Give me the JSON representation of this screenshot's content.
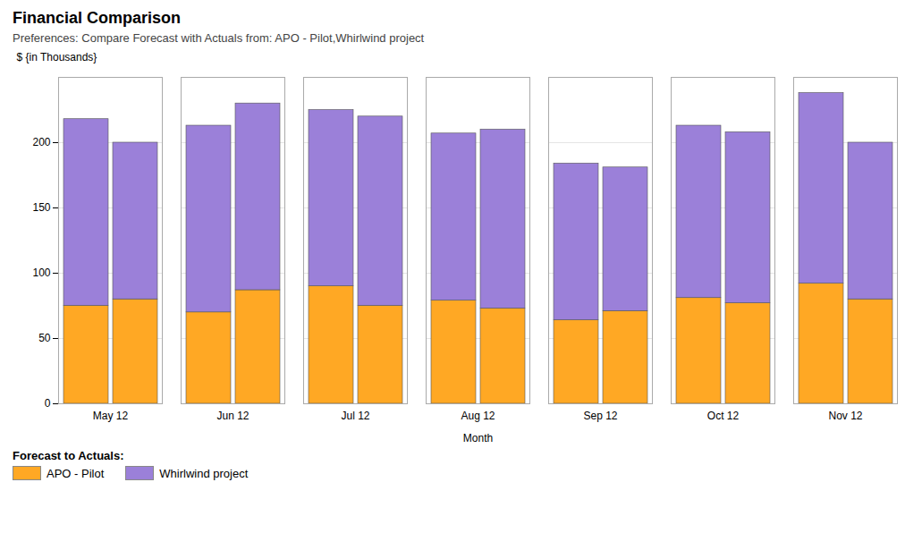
{
  "chart_data": {
    "type": "bar",
    "stacked": true,
    "title": "Financial Comparison",
    "subtitle": "Preferences: Compare Forecast with Actuals from: APO - Pilot,Whirlwind project",
    "ylabel": "$ {in Thousands}",
    "xlabel": "Month",
    "legend_title": "Forecast to Actuals:",
    "categories": [
      "May 12",
      "Jun 12",
      "Jul 12",
      "Aug 12",
      "Sep 12",
      "Oct 12",
      "Nov 12"
    ],
    "groups": [
      {
        "series": [
          {
            "name": "APO - Pilot",
            "color": "#FFA824",
            "values": [
              75,
              70,
              90,
              79,
              64,
              81,
              92
            ]
          },
          {
            "name": "Whirlwind project",
            "color": "#9b80d9",
            "values": [
              143,
              143,
              135,
              128,
              120,
              132,
              146
            ]
          }
        ]
      },
      {
        "series": [
          {
            "name": "APO - Pilot",
            "color": "#FFA824",
            "values": [
              80,
              87,
              75,
              73,
              71,
              77,
              80
            ]
          },
          {
            "name": "Whirlwind project",
            "color": "#9b80d9",
            "values": [
              120,
              143,
              145,
              137,
              110,
              131,
              120
            ]
          }
        ]
      }
    ],
    "ylim": [
      0,
      250
    ],
    "yticks": [
      0,
      50,
      100,
      150,
      200
    ],
    "grid": true
  }
}
